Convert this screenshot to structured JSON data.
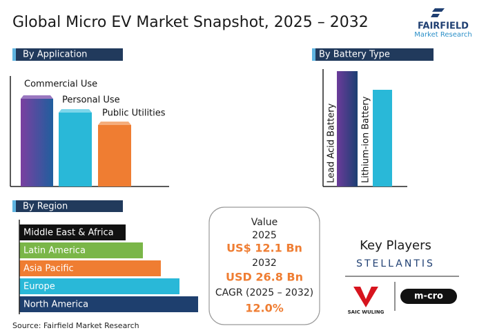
{
  "header": {
    "title": "Global Micro EV Market Snapshot, 2025 – 2032",
    "logo": {
      "name": "FAIRFIELD",
      "tagline": "Market Research"
    }
  },
  "application": {
    "heading": "By Application",
    "items": [
      "Commercial Use",
      "Personal Use",
      "Public Utilities"
    ]
  },
  "battery": {
    "heading": "By Battery Type",
    "items": [
      "Lead Acid Battery",
      "Lithium-ion Battery"
    ]
  },
  "region": {
    "heading": "By Region",
    "items": [
      "Middle East & Africa",
      "Latin America",
      "Asia Pacific",
      "Europe",
      "North America"
    ]
  },
  "snapshot": {
    "value_label": "Value",
    "year1": "2025",
    "value1": "US$ 12.1 Bn",
    "year2": "2032",
    "value2": "USD 26.8 Bn",
    "cagr_label": "CAGR (2025 – 2032)",
    "cagr": "12.0%"
  },
  "key_players": {
    "heading": "Key Players",
    "logos": [
      "STELLANTIS",
      "SAIC WULING",
      "m-cro"
    ]
  },
  "source": "Source: Fairfield Market Research"
}
